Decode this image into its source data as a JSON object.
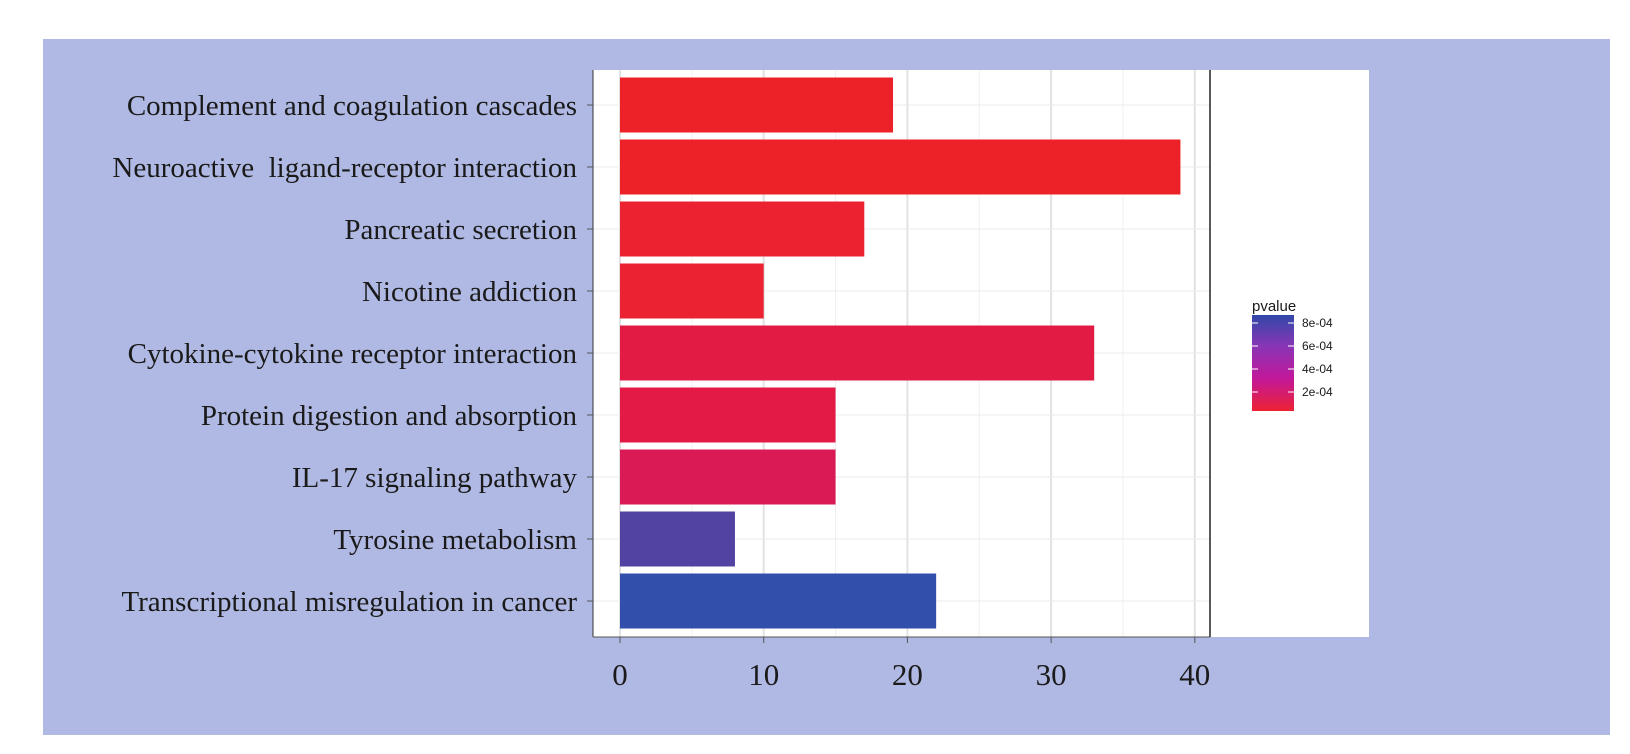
{
  "chart_data": {
    "type": "bar",
    "orientation": "horizontal",
    "categories": [
      "Complement and coagulation cascades",
      "Neuroactive  ligand-receptor interaction",
      "Pancreatic secretion",
      "Nicotine addiction",
      "Cytokine-cytokine receptor interaction",
      "Protein digestion and absorption",
      "IL-17 signaling pathway",
      "Tyrosine metabolism",
      "Transcriptional misregulation in cancer"
    ],
    "values": [
      19,
      39,
      17,
      10,
      33,
      15,
      15,
      8,
      22
    ],
    "pvalues": [
      5e-05,
      5e-05,
      5e-05,
      7e-05,
      0.00015,
      0.00015,
      0.0002,
      0.00065,
      0.00085
    ],
    "bar_colors": [
      "#ed2229",
      "#ed2229",
      "#ec2230",
      "#ea2232",
      "#e21b45",
      "#e31a45",
      "#da1a55",
      "#5242a1",
      "#3250ab"
    ],
    "xlim": [
      0,
      40
    ],
    "xticks": [
      "0",
      "10",
      "20",
      "30",
      "40"
    ],
    "grid": true,
    "legend": {
      "title": "pvalue",
      "position": "right",
      "labels": [
        "8e-04",
        "6e-04",
        "4e-04",
        "2e-04"
      ],
      "colorbar": [
        "#3148a8",
        "#8a35b5",
        "#c2189a",
        "#ec2233"
      ]
    }
  }
}
